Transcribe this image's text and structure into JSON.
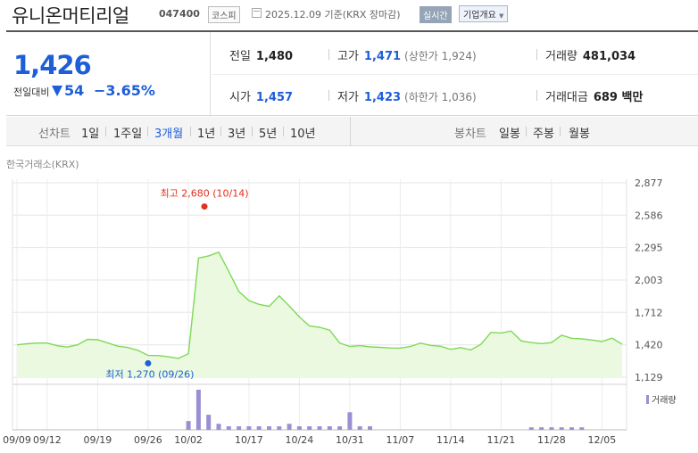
{
  "header": {
    "company": "유니온머티리얼",
    "code": "047400",
    "market": "코스피",
    "asof": "2025.12.09 기준(KRX 장마감)",
    "realtime": "실시간",
    "company_info": "기업개요"
  },
  "quote": {
    "price": "1,426",
    "change_label": "전일대비",
    "change_value": "54",
    "change_pct": "−3.65%",
    "direction": "down",
    "prev_close_label": "전일",
    "prev_close": "1,480",
    "high_label": "고가",
    "high": "1,471",
    "upper_limit": "(상한가 1,924)",
    "volume_label": "거래량",
    "volume": "481,034",
    "open_label": "시가",
    "open": "1,457",
    "low_label": "저가",
    "low": "1,423",
    "lower_limit": "(하한가 1,036)",
    "value_label": "거래대금",
    "value": "689 백만"
  },
  "tabs": {
    "line_label": "선차트",
    "line_items": [
      "1일",
      "1주일",
      "3개월",
      "1년",
      "3년",
      "5년",
      "10년"
    ],
    "active": "3개월",
    "candle_label": "봉차트",
    "candle_items": [
      "일봉",
      "주봉",
      "월봉"
    ]
  },
  "colors": {
    "up": "#e0301e",
    "down": "#1e5ed9",
    "line": "#7ed957",
    "area": "#eaf9df",
    "volume": "#9b8fd4"
  },
  "chart_data": {
    "type": "area",
    "source": "한국거래소(KRX)",
    "yticks": [
      2877,
      2586,
      2295,
      2003,
      1712,
      1420,
      1129
    ],
    "ylim": [
      1129,
      2877
    ],
    "xtick_labels": [
      "09/09",
      "09/12",
      "09/19",
      "09/26",
      "10/02",
      "10/17",
      "10/24",
      "10/31",
      "11/07",
      "11/14",
      "11/21",
      "11/28",
      "12/05"
    ],
    "xtick_index": [
      0,
      3,
      8,
      13,
      17,
      23,
      28,
      33,
      38,
      43,
      48,
      53,
      58
    ],
    "prices": [
      1420,
      1430,
      1436,
      1436,
      1412,
      1400,
      1420,
      1470,
      1466,
      1437,
      1408,
      1396,
      1370,
      1325,
      1324,
      1313,
      1298,
      1340,
      2200,
      2220,
      2252,
      2080,
      1900,
      1818,
      1784,
      1766,
      1860,
      1770,
      1671,
      1590,
      1578,
      1552,
      1437,
      1405,
      1413,
      1402,
      1398,
      1392,
      1390,
      1405,
      1436,
      1415,
      1407,
      1379,
      1395,
      1374,
      1425,
      1532,
      1527,
      1544,
      1455,
      1440,
      1431,
      1440,
      1507,
      1479,
      1474,
      1463,
      1450,
      1480,
      1426
    ],
    "volumes": [
      0,
      0,
      0,
      0,
      0,
      0,
      0,
      0,
      0,
      0,
      0,
      0,
      0,
      0,
      0,
      0,
      0,
      35,
      160,
      60,
      24,
      14,
      14,
      14,
      14,
      14,
      14,
      24,
      14,
      14,
      14,
      14,
      14,
      70,
      14,
      14,
      0,
      0,
      0,
      0,
      0,
      0,
      0,
      0,
      0,
      0,
      0,
      0,
      0,
      0,
      0,
      10,
      10,
      10,
      10,
      10,
      10,
      0,
      0,
      0,
      0
    ],
    "annotations": {
      "high": {
        "label": "최고 2,680 (10/14)",
        "value": 2680
      },
      "low": {
        "label": "최저 1,270 (09/26)",
        "value": 1270
      }
    },
    "volume_legend": "거래량",
    "grid": true
  }
}
